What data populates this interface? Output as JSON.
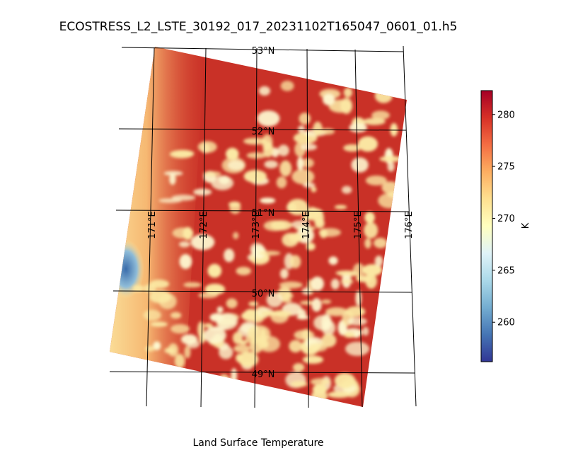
{
  "title": "ECOSTRESS_L2_LSTE_30192_017_20231102T165047_0601_01.h5",
  "caption": "Land Surface Temperature",
  "map": {
    "latitude_labels": [
      "53°N",
      "52°N",
      "51°N",
      "50°N",
      "49°N"
    ],
    "longitude_labels": [
      "171°E",
      "172°E",
      "173°E",
      "174°E",
      "175°E",
      "176°E"
    ],
    "colors": {
      "warm": "#c93127",
      "warm_light": "#e0573a",
      "cloud": "#fbe9a4",
      "cloud_white": "#fdf7cf",
      "cold_blue": "#3d74b0"
    }
  },
  "colorbar": {
    "unit_label": "K",
    "min": 256.2,
    "max": 282.3,
    "ticks": [
      "260",
      "265",
      "270",
      "275",
      "280"
    ],
    "tick_values": [
      260,
      265,
      270,
      275,
      280
    ],
    "colormap": "RdYlBu_r"
  }
}
